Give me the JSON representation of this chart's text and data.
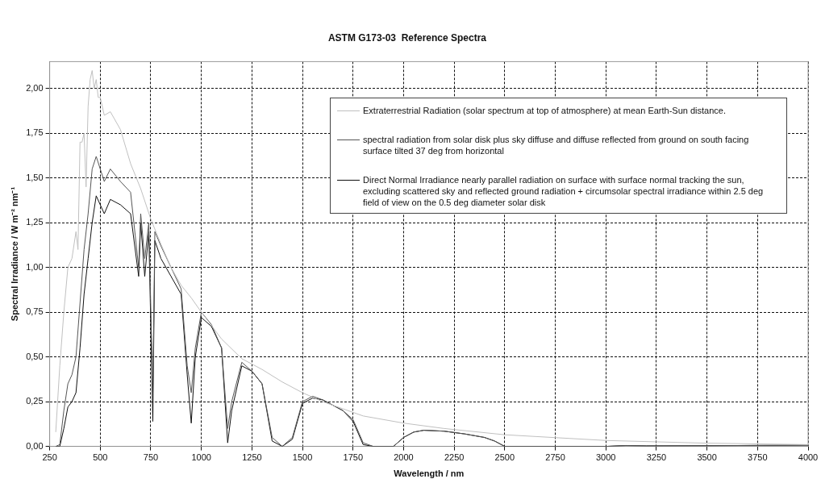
{
  "chart_data": {
    "type": "line",
    "title": "ASTM G173-03  Reference Spectra",
    "xlabel": "Wavelength / nm",
    "ylabel": "Spectral Irradiance / W m⁻² nm⁻¹",
    "xlim": [
      250,
      4000
    ],
    "xticks": [
      250,
      500,
      750,
      1000,
      1250,
      1500,
      1750,
      2000,
      2250,
      2500,
      2750,
      3000,
      3250,
      3500,
      3750,
      4000
    ],
    "ylim": [
      0,
      2.15
    ],
    "yticks": [
      {
        "value": 0,
        "label": "0,00"
      },
      {
        "value": 0.25,
        "label": "0,25"
      },
      {
        "value": 0.5,
        "label": "0,50"
      },
      {
        "value": 0.75,
        "label": "0,75"
      },
      {
        "value": 1.0,
        "label": "1,00"
      },
      {
        "value": 1.25,
        "label": "1,25"
      },
      {
        "value": 1.5,
        "label": "1,50"
      },
      {
        "value": 1.75,
        "label": "1,75"
      },
      {
        "value": 2.0,
        "label": "2,00"
      }
    ],
    "grid": true,
    "legend": "top right",
    "line_style": "solid",
    "series": [
      {
        "name": "Extraterrestrial Radiation (solar spectrum at top of atmosphere) at mean Earth-Sun distance.",
        "color": "#c0c0c0",
        "x": [
          280,
          300,
          320,
          340,
          360,
          380,
          390,
          400,
          410,
          420,
          430,
          440,
          450,
          460,
          470,
          480,
          490,
          500,
          520,
          550,
          600,
          650,
          700,
          750,
          800,
          850,
          900,
          950,
          1000,
          1100,
          1200,
          1300,
          1400,
          1500,
          1600,
          1700,
          1800,
          2000,
          2200,
          2500,
          3000,
          3500,
          4000
        ],
        "values": [
          0.08,
          0.45,
          0.75,
          1.0,
          1.05,
          1.2,
          1.1,
          1.7,
          1.7,
          1.75,
          1.45,
          1.9,
          2.05,
          2.1,
          2.0,
          2.05,
          1.95,
          1.95,
          1.85,
          1.87,
          1.77,
          1.58,
          1.44,
          1.27,
          1.13,
          1.0,
          0.9,
          0.83,
          0.75,
          0.6,
          0.49,
          0.43,
          0.36,
          0.3,
          0.25,
          0.21,
          0.17,
          0.13,
          0.1,
          0.065,
          0.033,
          0.018,
          0.01
        ]
      },
      {
        "name": "spectral radiation from solar disk plus sky  diffuse and diffuse reflected from ground on south facing surface tilted 37  deg from horizontal",
        "color": "#555555",
        "x": [
          280,
          300,
          320,
          340,
          360,
          380,
          400,
          420,
          440,
          460,
          480,
          500,
          520,
          550,
          600,
          650,
          690,
          700,
          720,
          740,
          760,
          770,
          800,
          850,
          900,
          930,
          950,
          970,
          1000,
          1050,
          1100,
          1130,
          1150,
          1200,
          1250,
          1300,
          1350,
          1400,
          1450,
          1500,
          1550,
          1600,
          1700,
          1750,
          1800,
          1850,
          1950,
          2000,
          2050,
          2100,
          2200,
          2300,
          2400,
          2450,
          2500,
          2600,
          3000,
          3100,
          3200,
          3500,
          4000
        ],
        "values": [
          0,
          0.01,
          0.2,
          0.35,
          0.4,
          0.5,
          0.8,
          1.1,
          1.3,
          1.55,
          1.62,
          1.55,
          1.48,
          1.55,
          1.48,
          1.42,
          1.0,
          1.3,
          1.05,
          1.25,
          0.3,
          1.2,
          1.12,
          1.0,
          0.88,
          0.45,
          0.3,
          0.55,
          0.75,
          0.68,
          0.55,
          0.1,
          0.25,
          0.47,
          0.42,
          0.35,
          0.05,
          0,
          0.05,
          0.25,
          0.28,
          0.26,
          0.2,
          0.15,
          0.02,
          0,
          0,
          0.05,
          0.08,
          0.09,
          0.085,
          0.07,
          0.05,
          0.03,
          0,
          0,
          0,
          0.005,
          0.003,
          0.004,
          0.007
        ]
      },
      {
        "name": " Direct Normal Irradiance nearly parallel radiation on surface with surface normal tracking the sun, excluding scattered  sky and reflected ground radiation + circumsolar spectral irradiance within 2.5 deg field of view on the 0.5  deg diameter solar disk",
        "color": "#111111",
        "x": [
          280,
          300,
          320,
          340,
          360,
          380,
          400,
          420,
          440,
          460,
          480,
          500,
          520,
          550,
          600,
          650,
          690,
          700,
          720,
          740,
          760,
          770,
          800,
          850,
          900,
          930,
          950,
          970,
          1000,
          1050,
          1100,
          1130,
          1150,
          1200,
          1250,
          1300,
          1350,
          1400,
          1450,
          1500,
          1550,
          1600,
          1700,
          1750,
          1800,
          1850,
          1950,
          2000,
          2050,
          2100,
          2200,
          2300,
          2400,
          2450,
          2500,
          2600,
          3000,
          3100,
          3200,
          3500,
          4000
        ],
        "values": [
          0,
          0,
          0.1,
          0.22,
          0.25,
          0.3,
          0.55,
          0.85,
          1.05,
          1.25,
          1.4,
          1.35,
          1.3,
          1.38,
          1.35,
          1.3,
          0.95,
          1.25,
          0.95,
          1.2,
          0.14,
          1.15,
          1.05,
          0.95,
          0.85,
          0.4,
          0.13,
          0.5,
          0.72,
          0.67,
          0.55,
          0.02,
          0.2,
          0.45,
          0.42,
          0.35,
          0.03,
          0,
          0.04,
          0.24,
          0.27,
          0.26,
          0.2,
          0.14,
          0.01,
          0,
          0,
          0.05,
          0.08,
          0.09,
          0.085,
          0.07,
          0.05,
          0.03,
          0,
          0,
          0,
          0.005,
          0.003,
          0.004,
          0.007
        ]
      }
    ]
  }
}
